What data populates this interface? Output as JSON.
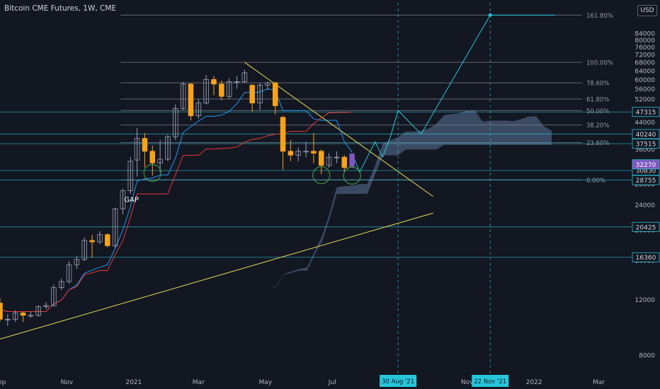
{
  "header": {
    "title": "Bitcoin CME Futures, 1W, CME",
    "currency_button": "USD"
  },
  "colors": {
    "background": "#131722",
    "candle_up": "#ffffff",
    "candle_down": "#f7a21b",
    "candle_last": "#7e57c2",
    "conversion_line": "#2196f3",
    "base_line": "#e53935",
    "fib_line": "#787b86",
    "level_line": "#26c6da",
    "trend_line": "#e6e05a",
    "cloud": "#5d7499",
    "projection": "#26c6da",
    "marker_circle": "#4caf50"
  },
  "chart_data": {
    "type": "candlestick",
    "title": "Bitcoin CME Futures, 1W, CME",
    "y_axis": {
      "scale": "log",
      "range": [
        7000,
        105000
      ],
      "ticks": [
        8000,
        12000,
        16000,
        20000,
        24000,
        28000,
        32000,
        36000,
        40000,
        44000,
        48000,
        52000,
        56000,
        60000,
        64000,
        68000,
        72000,
        76000,
        80000,
        84000
      ]
    },
    "x_axis": {
      "range": [
        "2020-09-01",
        "2022-03-31"
      ],
      "ticks": [
        {
          "date": "2020-09-01",
          "label": "Sep"
        },
        {
          "date": "2020-11-01",
          "label": "Nov"
        },
        {
          "date": "2021-01-01",
          "label": "2021"
        },
        {
          "date": "2021-03-01",
          "label": "Mar"
        },
        {
          "date": "2021-05-01",
          "label": "May"
        },
        {
          "date": "2021-07-01",
          "label": "Jul"
        },
        {
          "date": "2021-11-01",
          "label": "Nov"
        },
        {
          "date": "2022-01-01",
          "label": "2022"
        },
        {
          "date": "2022-03-01",
          "label": "Mar"
        }
      ],
      "highlighted_dates": [
        {
          "date": "2021-08-30",
          "label": "30 Aug '21"
        },
        {
          "date": "2021-11-22",
          "label": "22 Nov '21"
        }
      ]
    },
    "candles": [
      {
        "date": "2020-09-01",
        "open": 11700,
        "high": 12100,
        "low": 10200,
        "close": 10400
      },
      {
        "date": "2020-09-08",
        "open": 10400,
        "high": 10800,
        "low": 9900,
        "close": 10400
      },
      {
        "date": "2020-09-15",
        "open": 10400,
        "high": 11100,
        "low": 10200,
        "close": 10900
      },
      {
        "date": "2020-09-22",
        "open": 10900,
        "high": 11000,
        "low": 10200,
        "close": 10700
      },
      {
        "date": "2020-09-29",
        "open": 10700,
        "high": 11000,
        "low": 10500,
        "close": 10700
      },
      {
        "date": "2020-10-06",
        "open": 10700,
        "high": 11500,
        "low": 10600,
        "close": 11400
      },
      {
        "date": "2020-10-13",
        "open": 11400,
        "high": 11800,
        "low": 11200,
        "close": 11500
      },
      {
        "date": "2020-10-20",
        "open": 11500,
        "high": 13400,
        "low": 11400,
        "close": 13100
      },
      {
        "date": "2020-10-27",
        "open": 13100,
        "high": 14000,
        "low": 12900,
        "close": 13700
      },
      {
        "date": "2020-11-03",
        "open": 13700,
        "high": 15900,
        "low": 13500,
        "close": 15500
      },
      {
        "date": "2020-11-10",
        "open": 15500,
        "high": 16500,
        "low": 15000,
        "close": 16100
      },
      {
        "date": "2020-11-17",
        "open": 16100,
        "high": 18900,
        "low": 15900,
        "close": 18500
      },
      {
        "date": "2020-11-24",
        "open": 18500,
        "high": 19300,
        "low": 16300,
        "close": 18300
      },
      {
        "date": "2020-12-01",
        "open": 18300,
        "high": 19800,
        "low": 18000,
        "close": 19300
      },
      {
        "date": "2020-12-08",
        "open": 19300,
        "high": 19500,
        "low": 17600,
        "close": 17800
      },
      {
        "date": "2020-12-15",
        "open": 17800,
        "high": 23500,
        "low": 17600,
        "close": 23300
      },
      {
        "date": "2020-12-22",
        "open": 23300,
        "high": 27000,
        "low": 22400,
        "close": 26600
      },
      {
        "date": "2020-12-29",
        "open": 26600,
        "high": 34000,
        "low": 26000,
        "close": 33000
      },
      {
        "date": "2021-01-04",
        "open": 33300,
        "high": 42100,
        "low": 29500,
        "close": 39000
      },
      {
        "date": "2021-01-11",
        "open": 39000,
        "high": 40500,
        "low": 31500,
        "close": 35500
      },
      {
        "date": "2021-01-18",
        "open": 35500,
        "high": 37000,
        "low": 29700,
        "close": 32600
      },
      {
        "date": "2021-01-25",
        "open": 32600,
        "high": 38500,
        "low": 30500,
        "close": 33500
      },
      {
        "date": "2021-02-01",
        "open": 33500,
        "high": 40000,
        "low": 33000,
        "close": 39500
      },
      {
        "date": "2021-02-08",
        "open": 39500,
        "high": 50000,
        "low": 38500,
        "close": 48500
      },
      {
        "date": "2021-02-15",
        "open": 48500,
        "high": 59000,
        "low": 48000,
        "close": 58000
      },
      {
        "date": "2021-02-22",
        "open": 58000,
        "high": 58500,
        "low": 44500,
        "close": 46000
      },
      {
        "date": "2021-03-01",
        "open": 46000,
        "high": 52000,
        "low": 45000,
        "close": 50500
      },
      {
        "date": "2021-03-08",
        "open": 50500,
        "high": 62000,
        "low": 50000,
        "close": 60000
      },
      {
        "date": "2021-03-15",
        "open": 60000,
        "high": 61500,
        "low": 53500,
        "close": 58000
      },
      {
        "date": "2021-03-22",
        "open": 58000,
        "high": 59500,
        "low": 51500,
        "close": 53000
      },
      {
        "date": "2021-03-29",
        "open": 53000,
        "high": 60500,
        "low": 52000,
        "close": 59000
      },
      {
        "date": "2021-04-05",
        "open": 59000,
        "high": 61500,
        "low": 56000,
        "close": 59000
      },
      {
        "date": "2021-04-12",
        "open": 59000,
        "high": 64500,
        "low": 58500,
        "close": 63000
      },
      {
        "date": "2021-04-19",
        "open": 57500,
        "high": 58000,
        "low": 47500,
        "close": 50500
      },
      {
        "date": "2021-04-26",
        "open": 50500,
        "high": 58500,
        "low": 48000,
        "close": 57500
      },
      {
        "date": "2021-05-03",
        "open": 57500,
        "high": 59000,
        "low": 55500,
        "close": 58500
      },
      {
        "date": "2021-05-10",
        "open": 58500,
        "high": 59000,
        "low": 46500,
        "close": 49500
      },
      {
        "date": "2021-05-17",
        "open": 45500,
        "high": 46000,
        "low": 31000,
        "close": 35500
      },
      {
        "date": "2021-05-24",
        "open": 35500,
        "high": 38500,
        "low": 33000,
        "close": 34500
      },
      {
        "date": "2021-05-31",
        "open": 34500,
        "high": 36500,
        "low": 33000,
        "close": 35500
      },
      {
        "date": "2021-06-07",
        "open": 35500,
        "high": 38000,
        "low": 34000,
        "close": 35500
      },
      {
        "date": "2021-06-14",
        "open": 35500,
        "high": 40500,
        "low": 32500,
        "close": 35000
      },
      {
        "date": "2021-06-21",
        "open": 35500,
        "high": 36000,
        "low": 30000,
        "close": 32000
      },
      {
        "date": "2021-06-28",
        "open": 32000,
        "high": 35000,
        "low": 31500,
        "close": 34000
      },
      {
        "date": "2021-07-05",
        "open": 34000,
        "high": 35500,
        "low": 32500,
        "close": 34000
      },
      {
        "date": "2021-07-12",
        "open": 34000,
        "high": 34500,
        "low": 30500,
        "close": 31500
      },
      {
        "date": "2021-07-19",
        "open": 31800,
        "high": 35000,
        "low": 31500,
        "close": 34800
      }
    ],
    "fibonacci_levels": [
      {
        "label": "161.80%",
        "value": 96000
      },
      {
        "label": "100.00%",
        "value": 68000
      },
      {
        "label": "78.60%",
        "value": 58500
      },
      {
        "label": "61.80%",
        "value": 52000
      },
      {
        "label": "50.00%",
        "value": 47800
      },
      {
        "label": "38.20%",
        "value": 43000
      },
      {
        "label": "23.60%",
        "value": 37800
      },
      {
        "label": "0.00%",
        "value": 28800
      }
    ],
    "price_levels": [
      {
        "label": "47315",
        "value": 47315
      },
      {
        "label": "40240",
        "value": 40240
      },
      {
        "label": "37515",
        "value": 37515
      },
      {
        "label": "30830",
        "value": 30830
      },
      {
        "label": "28755",
        "value": 28755
      },
      {
        "label": "20425",
        "value": 20425
      },
      {
        "label": "16360",
        "value": 16360
      }
    ],
    "current_price": {
      "label": "32270",
      "value": 32270
    },
    "annotations": [
      {
        "text": "GAP",
        "date": "2020-12-29",
        "value": 24500
      }
    ]
  }
}
